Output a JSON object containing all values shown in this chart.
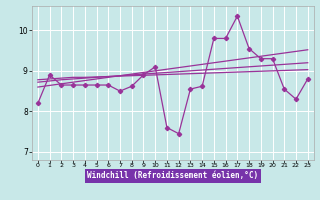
{
  "xlabel": "Windchill (Refroidissement éolien,°C)",
  "bg_color": "#c8e8e8",
  "line_color": "#993399",
  "grid_color": "#ffffff",
  "xlabel_bg": "#7733aa",
  "xlim": [
    -0.5,
    23.5
  ],
  "ylim": [
    6.8,
    10.6
  ],
  "yticks": [
    7,
    8,
    9,
    10
  ],
  "xticks": [
    0,
    1,
    2,
    3,
    4,
    5,
    6,
    7,
    8,
    9,
    10,
    11,
    12,
    13,
    14,
    15,
    16,
    17,
    18,
    19,
    20,
    21,
    22,
    23
  ],
  "main": [
    8.2,
    8.9,
    8.65,
    8.65,
    8.65,
    8.65,
    8.65,
    8.5,
    8.62,
    8.9,
    9.1,
    7.6,
    7.45,
    8.55,
    8.62,
    9.8,
    9.8,
    10.35,
    9.55,
    9.3,
    9.3,
    8.55,
    8.3,
    8.8
  ],
  "trend1": [
    8.78,
    8.8,
    8.82,
    8.84,
    8.84,
    8.85,
    8.86,
    8.87,
    8.88,
    8.89,
    8.9,
    8.91,
    8.92,
    8.93,
    8.94,
    8.95,
    8.96,
    8.97,
    8.98,
    8.99,
    9.0,
    9.01,
    9.02,
    9.03
  ],
  "trend2": [
    8.72,
    8.75,
    8.78,
    8.8,
    8.82,
    8.84,
    8.86,
    8.88,
    8.9,
    8.92,
    8.94,
    8.96,
    8.98,
    9.0,
    9.02,
    9.04,
    9.06,
    9.08,
    9.1,
    9.12,
    9.14,
    9.16,
    9.18,
    9.2
  ],
  "trend3": [
    8.6,
    8.64,
    8.68,
    8.72,
    8.76,
    8.8,
    8.84,
    8.88,
    8.92,
    8.96,
    9.0,
    9.04,
    9.08,
    9.12,
    9.16,
    9.2,
    9.24,
    9.28,
    9.32,
    9.36,
    9.4,
    9.44,
    9.48,
    9.52
  ]
}
